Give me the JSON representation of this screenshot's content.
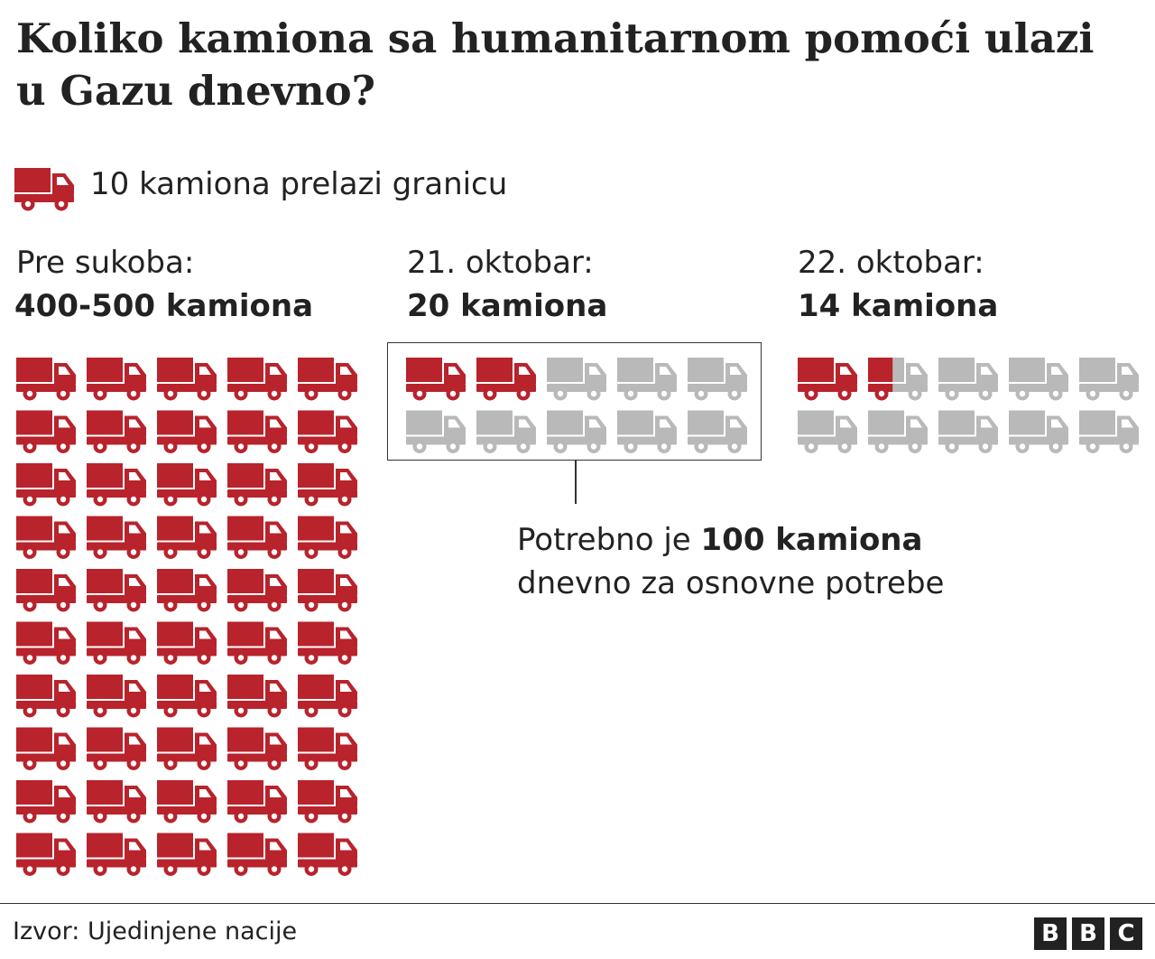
{
  "title": "Koliko kamiona sa humanitarnom pomoći ulazi u Gazu dnevno?",
  "legend": {
    "text": "10 kamiona prelazi granicu",
    "icon": "truck-icon"
  },
  "colors": {
    "filled": "#b8232c",
    "empty": "#b9b9b9",
    "text": "#222222"
  },
  "panels": [
    {
      "id": "pre-sukoba",
      "label": "Pre sukoba:",
      "value_label": "400-500 kamiona",
      "trucks_per_icon": 10,
      "shown_icons": 50,
      "filled_icons": 50
    },
    {
      "id": "21-oktobar",
      "label": "21. oktobar:",
      "value_label": "20 kamiona",
      "trucks_per_icon": 10,
      "shown_icons": 10,
      "filled_icons": 2
    },
    {
      "id": "22-oktobar",
      "label": "22. oktobar:",
      "value_label": "14 kamiona",
      "trucks_per_icon": 10,
      "shown_icons": 10,
      "filled_icons": 1.4
    }
  ],
  "need_note": {
    "prefix": "Potrebno je ",
    "bold": "100 kamiona",
    "line2": "dnevno za osnovne potrebe"
  },
  "chart_data": {
    "type": "pictogram",
    "unit": "10 kamiona",
    "categories": [
      "Pre sukoba:",
      "21. oktobar:",
      "22. oktobar:"
    ],
    "values": [
      500,
      20,
      14
    ],
    "value_labels": [
      "400-500 kamiona",
      "20 kamiona",
      "14 kamiona"
    ],
    "needed": 100
  },
  "footer": {
    "source": "Izvor: Ujedinjene nacije",
    "logo": [
      "B",
      "B",
      "C"
    ]
  }
}
